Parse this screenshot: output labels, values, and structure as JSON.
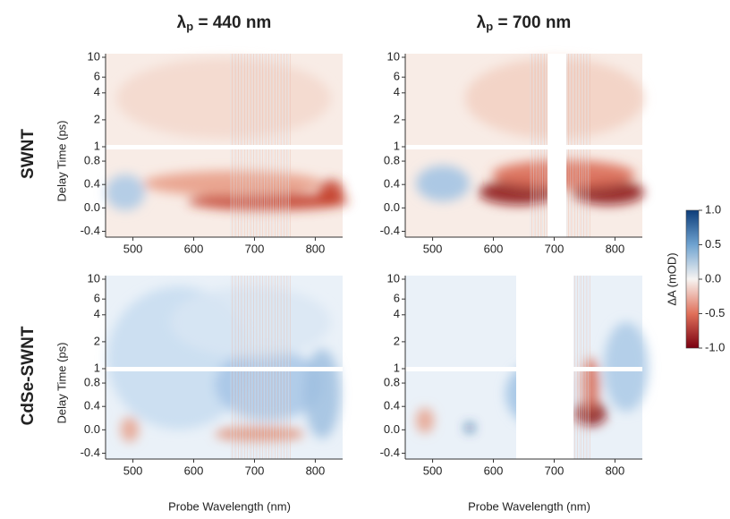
{
  "chart_data": [
    {
      "type": "heatmap",
      "title": [
        "λ",
        "p",
        " = 440 nm"
      ],
      "row_label": "SWNT",
      "ylabel": "Delay Time (ps)",
      "xlim": [
        455,
        845
      ],
      "xticks": [
        500,
        600,
        700,
        800
      ],
      "ylim_log": [
        1,
        10
      ],
      "yticks_log": [
        1,
        2,
        4,
        6,
        10
      ],
      "ylim": [
        -0.5,
        1
      ],
      "yticks": [
        {
          "value": -0.4,
          "label": "-0.4"
        },
        {
          "value": 0,
          "label": "0.0"
        },
        {
          "value": 0.4,
          "label": "0.4"
        },
        {
          "value": 0.8,
          "label": "0.8"
        }
      ]
    },
    {
      "type": "heatmap",
      "title": [
        "λ",
        "p",
        " = 700 nm"
      ],
      "xlim": [
        455,
        845
      ],
      "xticks": [
        500,
        600,
        700,
        800
      ],
      "ylim_log": [
        1,
        10
      ],
      "yticks_log": [
        1,
        2,
        4,
        6,
        10
      ],
      "ylim": [
        -0.5,
        1
      ],
      "yticks": [
        {
          "value": -0.4,
          "label": "-0.4"
        },
        {
          "value": 0,
          "label": "0.0"
        },
        {
          "value": 0.4,
          "label": "0.4"
        },
        {
          "value": 0.8,
          "label": "0.8"
        }
      ]
    },
    {
      "type": "heatmap",
      "row_label": "CdSe-SWNT",
      "ylabel": "Delay Time (ps)",
      "xlabel": "Probe Wavelength (nm)",
      "xlim": [
        455,
        845
      ],
      "xticks": [
        500,
        600,
        700,
        800
      ],
      "ylim_log": [
        1,
        10
      ],
      "yticks_log": [
        1,
        2,
        4,
        6,
        10
      ],
      "ylim": [
        -0.5,
        1
      ],
      "yticks": [
        {
          "value": -0.4,
          "label": "-0.4"
        },
        {
          "value": 0,
          "label": "0.0"
        },
        {
          "value": 0.4,
          "label": "0.4"
        },
        {
          "value": 0.8,
          "label": "0.8"
        }
      ]
    },
    {
      "type": "heatmap",
      "xlabel": "Probe Wavelength (nm)",
      "xlim": [
        455,
        845
      ],
      "xticks": [
        500,
        600,
        700,
        800
      ],
      "ylim_log": [
        1,
        10
      ],
      "yticks_log": [
        1,
        2,
        4,
        6,
        10
      ],
      "ylim": [
        -0.5,
        1
      ],
      "yticks": [
        {
          "value": -0.4,
          "label": "-0.4"
        },
        {
          "value": 0,
          "label": "0.0"
        },
        {
          "value": 0.4,
          "label": "0.4"
        },
        {
          "value": 0.8,
          "label": "0.8"
        }
      ]
    },
    {
      "type": "colorbar",
      "label": "ΔA (mOD)",
      "lim": [
        -1,
        1
      ],
      "ticks": [
        {
          "value": 1,
          "label": "1.0"
        },
        {
          "value": 0.5,
          "label": "0.5"
        },
        {
          "value": 0,
          "label": "0.0"
        },
        {
          "value": -0.5,
          "label": "-0.5"
        },
        {
          "value": -1,
          "label": "-1.0"
        }
      ]
    }
  ]
}
